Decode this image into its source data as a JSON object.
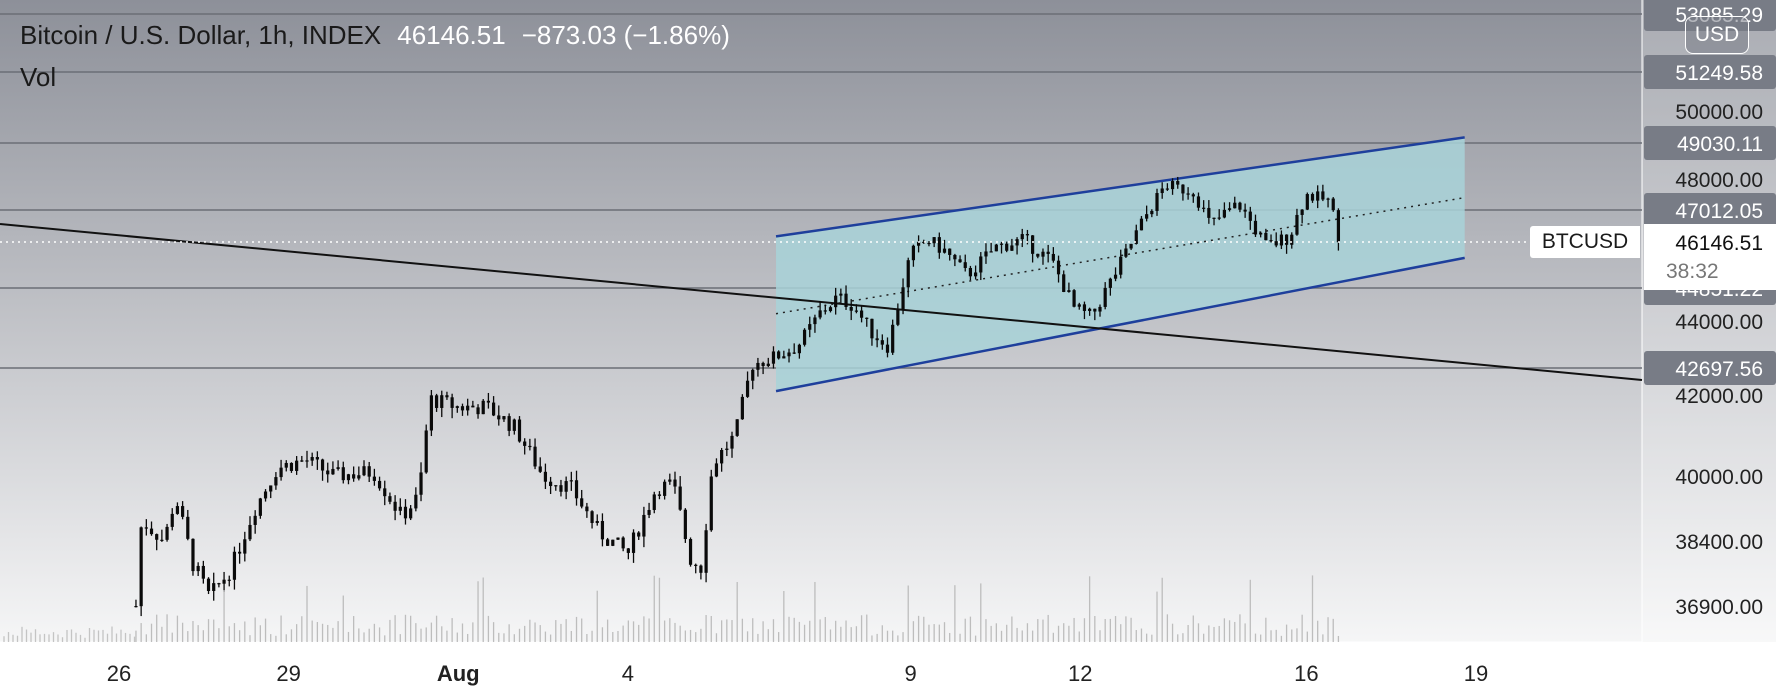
{
  "legend": {
    "symbol": "Bitcoin / U.S. Dollar, 1h, INDEX",
    "last_price": "46146.51",
    "change": "−873.03 (−1.86%)",
    "volume_label": "Vol"
  },
  "currency_button": "USD",
  "symbol_tag": "BTCUSD",
  "colors": {
    "background_top": "#8d9099",
    "background_bottom": "#ffffff",
    "candle": "#0a0a0a",
    "channel_fill": "#a8d2d8",
    "channel_line": "#1e3f9c",
    "trendline": "#111111",
    "level_line": "#6b6e76",
    "level_label_bg": "#787c86",
    "last_price_label_bg": "#ffffff"
  },
  "chart_data": {
    "type": "candlestick",
    "title": "Bitcoin / U.S. Dollar, 1h, INDEX",
    "ylim": [
      36200,
      53500
    ],
    "x_ticks": [
      {
        "label": "26",
        "day": 26
      },
      {
        "label": "29",
        "day": 29
      },
      {
        "label": "Aug",
        "day": 32
      },
      {
        "label": "4",
        "day": 35
      },
      {
        "label": "9",
        "day": 40
      },
      {
        "label": "12",
        "day": 43
      },
      {
        "label": "16",
        "day": 47
      },
      {
        "label": "19",
        "day": 50
      }
    ],
    "y_ticks": [
      "50000.00",
      "48000.00",
      "44000.00",
      "42000.00",
      "40000.00",
      "38400.00",
      "36900.00"
    ],
    "level_lines": [
      "53085.29",
      "51249.58",
      "49030.11",
      "47012.05",
      "44851.22",
      "42697.56"
    ],
    "last_price": "46146.51",
    "countdown": "38:32",
    "price_path": [
      {
        "day": 26.3,
        "price": 36900
      },
      {
        "day": 26.4,
        "price": 38900
      },
      {
        "day": 26.8,
        "price": 38400
      },
      {
        "day": 27.0,
        "price": 39500
      },
      {
        "day": 27.3,
        "price": 37900
      },
      {
        "day": 27.6,
        "price": 37100
      },
      {
        "day": 28.0,
        "price": 37800
      },
      {
        "day": 28.4,
        "price": 39200
      },
      {
        "day": 28.8,
        "price": 40200
      },
      {
        "day": 29.3,
        "price": 40400
      },
      {
        "day": 29.8,
        "price": 40000
      },
      {
        "day": 30.5,
        "price": 40100
      },
      {
        "day": 31.0,
        "price": 39000
      },
      {
        "day": 31.3,
        "price": 39500
      },
      {
        "day": 31.5,
        "price": 41900
      },
      {
        "day": 32.0,
        "price": 41700
      },
      {
        "day": 32.5,
        "price": 41700
      },
      {
        "day": 33.0,
        "price": 41200
      },
      {
        "day": 33.5,
        "price": 40000
      },
      {
        "day": 34.0,
        "price": 39700
      },
      {
        "day": 34.5,
        "price": 38600
      },
      {
        "day": 35.0,
        "price": 38100
      },
      {
        "day": 35.5,
        "price": 39700
      },
      {
        "day": 35.8,
        "price": 39800
      },
      {
        "day": 36.1,
        "price": 38000
      },
      {
        "day": 36.3,
        "price": 37800
      },
      {
        "day": 36.5,
        "price": 40300
      },
      {
        "day": 36.9,
        "price": 41000
      },
      {
        "day": 37.2,
        "price": 42800
      },
      {
        "day": 37.6,
        "price": 43000
      },
      {
        "day": 38.0,
        "price": 43300
      },
      {
        "day": 38.4,
        "price": 44200
      },
      {
        "day": 38.7,
        "price": 44600
      },
      {
        "day": 39.0,
        "price": 44400
      },
      {
        "day": 39.3,
        "price": 43700
      },
      {
        "day": 39.6,
        "price": 43300
      },
      {
        "day": 40.0,
        "price": 45800
      },
      {
        "day": 40.3,
        "price": 46200
      },
      {
        "day": 40.6,
        "price": 45900
      },
      {
        "day": 41.0,
        "price": 45200
      },
      {
        "day": 41.5,
        "price": 46000
      },
      {
        "day": 42.0,
        "price": 46200
      },
      {
        "day": 42.5,
        "price": 45600
      },
      {
        "day": 42.9,
        "price": 44300
      },
      {
        "day": 43.2,
        "price": 44100
      },
      {
        "day": 43.6,
        "price": 45200
      },
      {
        "day": 44.0,
        "price": 46400
      },
      {
        "day": 44.5,
        "price": 47800
      },
      {
        "day": 45.0,
        "price": 47600
      },
      {
        "day": 45.3,
        "price": 46600
      },
      {
        "day": 45.8,
        "price": 47200
      },
      {
        "day": 46.3,
        "price": 46000
      },
      {
        "day": 46.7,
        "price": 46300
      },
      {
        "day": 47.0,
        "price": 47500
      },
      {
        "day": 47.4,
        "price": 47300
      },
      {
        "day": 47.6,
        "price": 46146.51
      }
    ]
  }
}
